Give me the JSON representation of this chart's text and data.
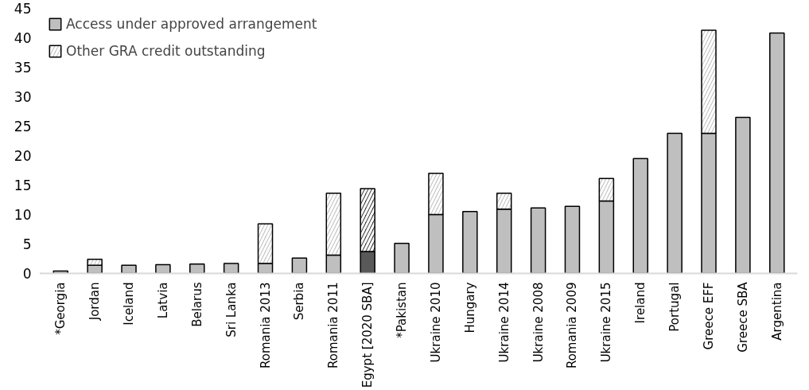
{
  "chart_data": {
    "type": "bar",
    "stacked": true,
    "categories": [
      "*Georgia",
      "Jordan",
      "Iceland",
      "Latvia",
      "Belarus",
      "Sri Lanka",
      "Romania 2013",
      "Serbia",
      "Romania 2011",
      "Egypt [2020 SBA]",
      "*Pakistan",
      "Ukraine 2010",
      "Hungary",
      "Ukraine 2014",
      "Ukraine 2008",
      "Romania 2009",
      "Ukraine 2015",
      "Ireland",
      "Portugal",
      "Greece EFF",
      "Greece SBA",
      "Argentina"
    ],
    "series": [
      {
        "name": "Access under approved arrangement",
        "color": "#bfbfbf",
        "colors": [
          "#bfbfbf",
          "#bfbfbf",
          "#bfbfbf",
          "#bfbfbf",
          "#bfbfbf",
          "#bfbfbf",
          "#bfbfbf",
          "#bfbfbf",
          "#bfbfbf",
          "#595959",
          "#bfbfbf",
          "#bfbfbf",
          "#bfbfbf",
          "#bfbfbf",
          "#bfbfbf",
          "#bfbfbf",
          "#bfbfbf",
          "#bfbfbf",
          "#bfbfbf",
          "#bfbfbf",
          "#bfbfbf",
          "#bfbfbf"
        ],
        "values": [
          0.4,
          1.4,
          1.4,
          1.5,
          1.6,
          1.7,
          1.7,
          2.6,
          3.1,
          3.7,
          5.1,
          10.0,
          10.5,
          10.9,
          11.1,
          11.4,
          12.3,
          19.5,
          23.8,
          23.8,
          26.5,
          40.8
        ]
      },
      {
        "name": "Other GRA credit outstanding",
        "color": "#bfbfbf",
        "colors": [
          "#bfbfbf",
          "#bfbfbf",
          "#bfbfbf",
          "#bfbfbf",
          "#bfbfbf",
          "#bfbfbf",
          "#bfbfbf",
          "#bfbfbf",
          "#bfbfbf",
          "#404040",
          "#bfbfbf",
          "#bfbfbf",
          "#bfbfbf",
          "#bfbfbf",
          "#bfbfbf",
          "#bfbfbf",
          "#bfbfbf",
          "#bfbfbf",
          "#bfbfbf",
          "#bfbfbf",
          "#bfbfbf",
          "#bfbfbf"
        ],
        "values": [
          null,
          1.0,
          null,
          null,
          null,
          null,
          6.7,
          null,
          10.5,
          10.7,
          null,
          7.0,
          null,
          2.7,
          null,
          null,
          3.8,
          null,
          null,
          17.5,
          null,
          null
        ]
      }
    ],
    "ylim": [
      0,
      45
    ],
    "yticks": [
      0,
      5,
      10,
      15,
      20,
      25,
      30,
      35,
      40,
      45
    ],
    "legend": "top left"
  }
}
